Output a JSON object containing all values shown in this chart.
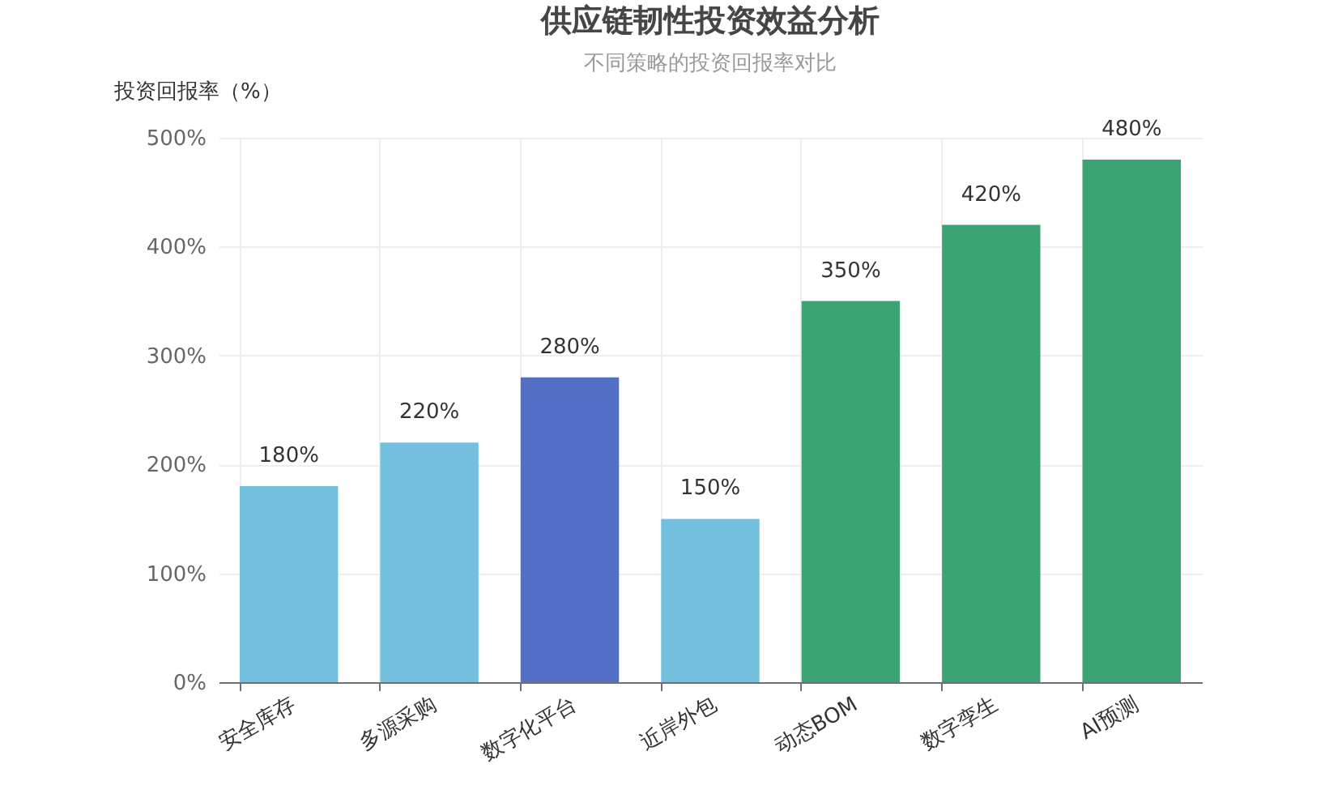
{
  "chart_data": {
    "type": "bar",
    "title": "供应链韧性投资效益分析",
    "subtitle": "不同策略的投资回报率对比",
    "ylabel": "投资回报率（%）",
    "categories": [
      "安全库存",
      "多源采购",
      "数字化平台",
      "近岸外包",
      "动态BOM",
      "数字孪生",
      "AI预测"
    ],
    "values": [
      180,
      220,
      280,
      150,
      350,
      420,
      480
    ],
    "colors": [
      "#73c0de",
      "#73c0de",
      "#5470c6",
      "#73c0de",
      "#3ba272",
      "#3ba272",
      "#3ba272"
    ],
    "value_labels": [
      "180%",
      "220%",
      "280%",
      "150%",
      "350%",
      "420%",
      "480%"
    ],
    "ylim": [
      0,
      500
    ],
    "yticks": [
      {
        "value": 0,
        "label": "0%"
      },
      {
        "value": 100,
        "label": "100%"
      },
      {
        "value": 200,
        "label": "200%"
      },
      {
        "value": 300,
        "label": "300%"
      },
      {
        "value": 400,
        "label": "400%"
      },
      {
        "value": 500,
        "label": "500%"
      }
    ],
    "grid": true
  }
}
